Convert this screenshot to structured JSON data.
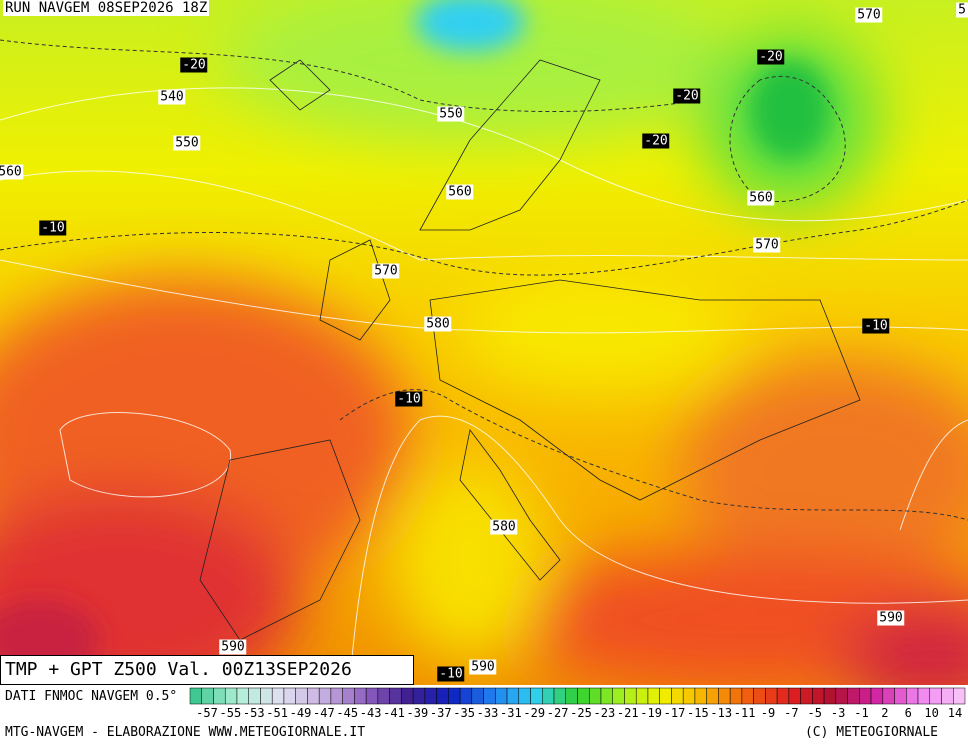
{
  "header": {
    "run": "RUN NAVGEM 08SEP2026 18Z"
  },
  "map": {
    "height_labels": [
      570,
      540,
      550,
      550,
      560,
      560,
      560,
      570,
      570,
      580,
      580,
      590,
      590,
      590,
      5
    ],
    "temp_labels": [
      -20,
      -20,
      -20,
      -20,
      -10,
      -10,
      -10,
      -10
    ]
  },
  "footer": {
    "title": "TMP + GPT Z500 Val. 00Z13SEP2026"
  },
  "legend": {
    "source": "DATI FNMOC NAVGEM 0.5°",
    "ticks": [
      -57,
      -55,
      -53,
      -51,
      -49,
      -47,
      -45,
      -43,
      -41,
      -39,
      -37,
      -35,
      -33,
      -31,
      -29,
      -27,
      -25,
      -23,
      -21,
      -19,
      -17,
      -15,
      -13,
      -11,
      -9,
      -7,
      -5,
      -3,
      -1,
      2,
      6,
      10,
      14
    ]
  },
  "credits": {
    "left": "MTG-NAVGEM - ELABORAZIONE WWW.METEOGIORNALE.IT",
    "right": "(C) METEOGIORNALE"
  }
}
